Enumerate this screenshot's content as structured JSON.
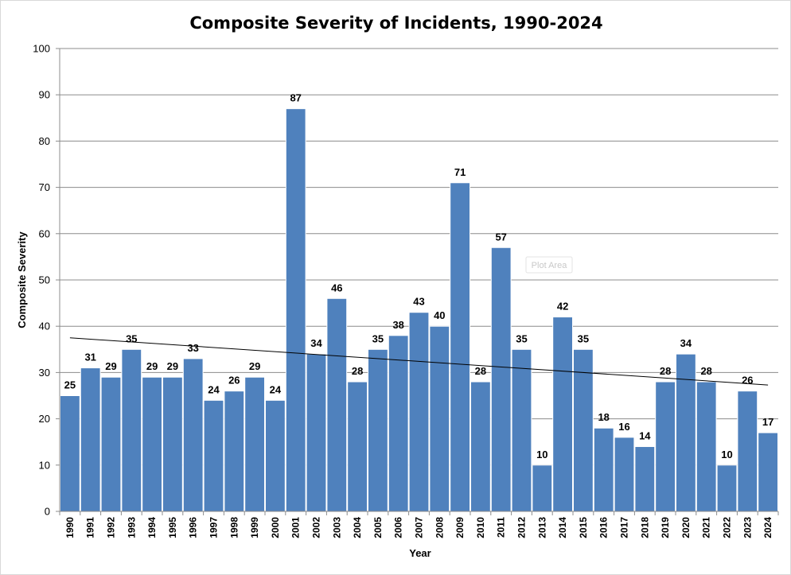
{
  "chart_data": {
    "type": "bar",
    "title": "Composite Severity of Incidents, 1990-2024",
    "xlabel": "Year",
    "ylabel": "Composite Severity",
    "ylim": [
      0,
      100
    ],
    "yticks": [
      0,
      10,
      20,
      30,
      40,
      50,
      60,
      70,
      80,
      90,
      100
    ],
    "grid": true,
    "legend": "none",
    "bar_color": "#4f81bd",
    "categories": [
      "1990",
      "1991",
      "1992",
      "1993",
      "1994",
      "1995",
      "1996",
      "1997",
      "1998",
      "1999",
      "2000",
      "2001",
      "2002",
      "2003",
      "2004",
      "2005",
      "2006",
      "2007",
      "2008",
      "2009",
      "2010",
      "2011",
      "2012",
      "2013",
      "2014",
      "2015",
      "2016",
      "2017",
      "2018",
      "2019",
      "2020",
      "2021",
      "2022",
      "2023",
      "2024"
    ],
    "values": [
      25,
      31,
      29,
      35,
      29,
      29,
      33,
      24,
      26,
      29,
      24,
      87,
      34,
      46,
      28,
      35,
      38,
      43,
      40,
      71,
      28,
      57,
      35,
      10,
      42,
      35,
      18,
      16,
      14,
      28,
      34,
      28,
      10,
      26,
      17
    ],
    "trendline": {
      "type": "linear",
      "start": 37.5,
      "end": 27.3
    },
    "annotation": "Plot Area"
  }
}
